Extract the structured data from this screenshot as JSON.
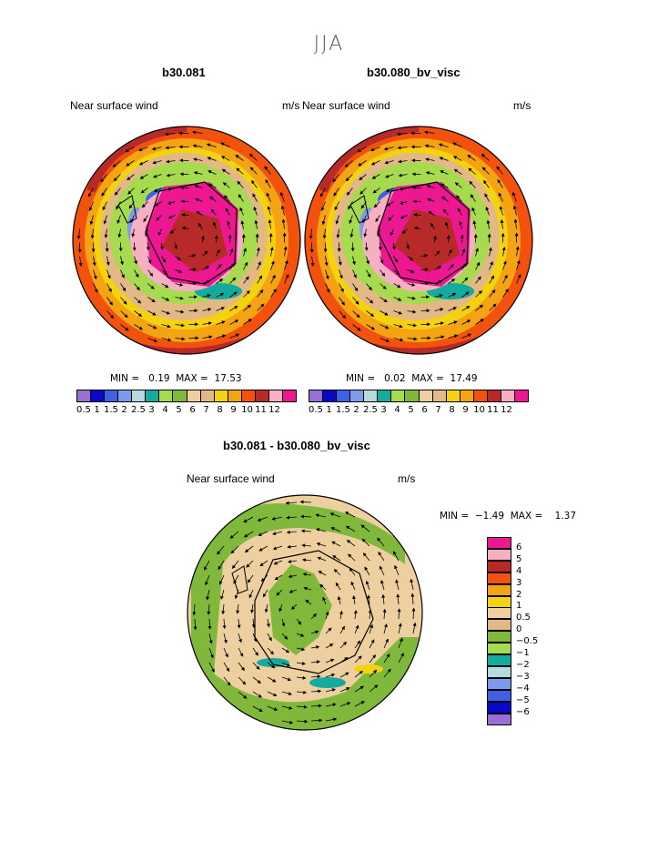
{
  "title": "JJA",
  "panels": [
    {
      "id": "b30.081",
      "label": "Near surface wind",
      "units": "m/s",
      "min_label": "MIN =",
      "min": "0.19",
      "max_label": "MAX =",
      "max": "17.53"
    },
    {
      "id": "b30.080_bv_visc",
      "label": "Near surface wind",
      "units": "m/s",
      "min_label": "MIN =",
      "min": "0.02",
      "max_label": "MAX =",
      "max": "17.49"
    }
  ],
  "diff_panel": {
    "id": "b30.081 - b30.080_bv_visc",
    "label": "Near surface wind",
    "units": "m/s",
    "min_label": "MIN =",
    "min": "−1.49",
    "max_label": "MAX =",
    "max": "1.37"
  },
  "colorbar_top": {
    "ticks": [
      "0.5",
      "1",
      "1.5",
      "2",
      "2.5",
      "3",
      "4",
      "5",
      "6",
      "7",
      "8",
      "9",
      "10",
      "11",
      "12"
    ],
    "colors": [
      "#9a6fd4",
      "#0b07c8",
      "#3f61e6",
      "#7d9bea",
      "#b5dcdc",
      "#14aa9e",
      "#a6db50",
      "#80b83b",
      "#eecfa0",
      "#e2b884",
      "#f5d20f",
      "#f4a412",
      "#f2520d",
      "#b72a28",
      "#f7afc3",
      "#ed1792"
    ]
  },
  "colorbar_diff": {
    "ticks": [
      "6",
      "5",
      "4",
      "3",
      "2",
      "1",
      "0.5",
      "0",
      "−0.5",
      "−1",
      "−2",
      "−3",
      "−4",
      "−5",
      "−6"
    ],
    "colors": [
      "#ed1792",
      "#f7afc3",
      "#b72a28",
      "#f2520d",
      "#f4a412",
      "#f5d20f",
      "#eecfa0",
      "#e2b884",
      "#80b83b",
      "#a6db50",
      "#14aa9e",
      "#b5dcdc",
      "#7d9bea",
      "#3f61e6",
      "#0b07c8",
      "#9a6fd4"
    ]
  }
}
